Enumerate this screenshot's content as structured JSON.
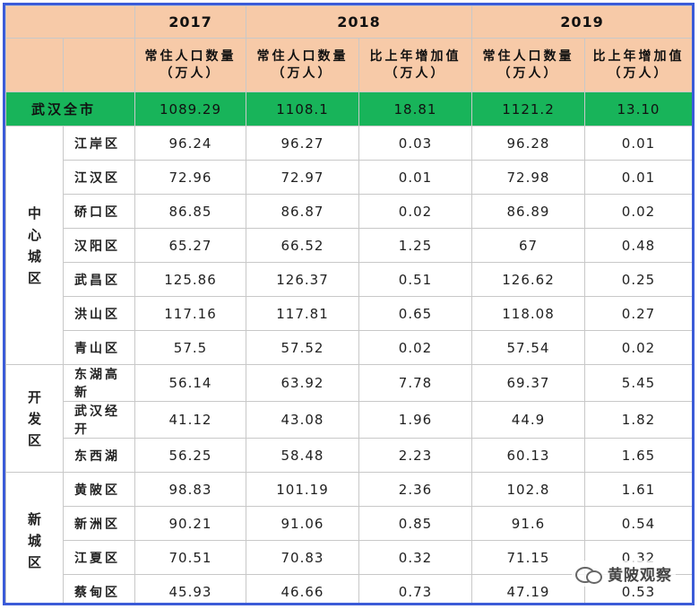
{
  "header": {
    "years": [
      "2017",
      "2018",
      "2019"
    ],
    "population_label": "常住人口数量（万人）",
    "increase_label": "比上年增加值（万人）"
  },
  "total": {
    "name": "武汉全市",
    "values": [
      "1089.29",
      "1108.1",
      "18.81",
      "1121.2",
      "13.10"
    ]
  },
  "groups": [
    {
      "name": "中心城区",
      "rows": [
        {
          "district": "江岸区",
          "values": [
            "96.24",
            "96.27",
            "0.03",
            "96.28",
            "0.01"
          ]
        },
        {
          "district": "江汉区",
          "values": [
            "72.96",
            "72.97",
            "0.01",
            "72.98",
            "0.01"
          ]
        },
        {
          "district": "硚口区",
          "values": [
            "86.85",
            "86.87",
            "0.02",
            "86.89",
            "0.02"
          ]
        },
        {
          "district": "汉阳区",
          "values": [
            "65.27",
            "66.52",
            "1.25",
            "67",
            "0.48"
          ]
        },
        {
          "district": "武昌区",
          "values": [
            "125.86",
            "126.37",
            "0.51",
            "126.62",
            "0.25"
          ]
        },
        {
          "district": "洪山区",
          "values": [
            "117.16",
            "117.81",
            "0.65",
            "118.08",
            "0.27"
          ]
        },
        {
          "district": "青山区",
          "values": [
            "57.5",
            "57.52",
            "0.02",
            "57.54",
            "0.02"
          ]
        }
      ]
    },
    {
      "name": "开发区",
      "rows": [
        {
          "district": "东湖高新",
          "values": [
            "56.14",
            "63.92",
            "7.78",
            "69.37",
            "5.45"
          ]
        },
        {
          "district": "武汉经开",
          "values": [
            "41.12",
            "43.08",
            "1.96",
            "44.9",
            "1.82"
          ]
        },
        {
          "district": "东西湖",
          "values": [
            "56.25",
            "58.48",
            "2.23",
            "60.13",
            "1.65"
          ]
        }
      ]
    },
    {
      "name": "新城区",
      "rows": [
        {
          "district": "黄陂区",
          "values": [
            "98.83",
            "101.19",
            "2.36",
            "102.8",
            "1.61"
          ]
        },
        {
          "district": "新洲区",
          "values": [
            "90.21",
            "91.06",
            "0.85",
            "91.6",
            "0.54"
          ]
        },
        {
          "district": "江夏区",
          "values": [
            "70.51",
            "70.83",
            "0.32",
            "71.15",
            "0.32"
          ]
        },
        {
          "district": "蔡甸区",
          "values": [
            "45.93",
            "46.66",
            "0.73",
            "47.19",
            "0.53"
          ]
        }
      ]
    }
  ],
  "watermark": {
    "icon": "wechat-icon",
    "text": "黄陂观察"
  }
}
